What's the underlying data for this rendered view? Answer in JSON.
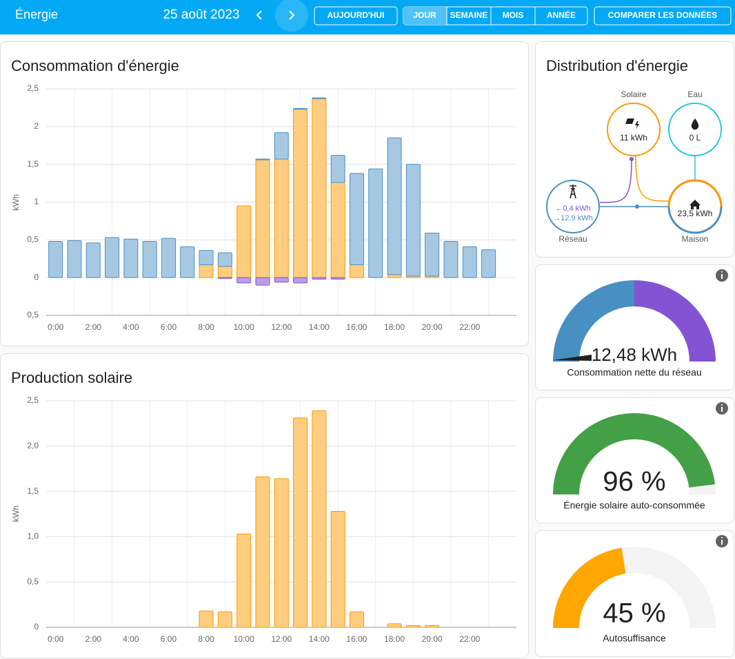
{
  "header": {
    "title": "Énergie",
    "date": "25 août 2023",
    "buttons": [
      "AUJOURD'HUI",
      "JOUR",
      "SEMAINE",
      "MOIS",
      "ANNÉE",
      "COMPARER LES DONNÉES"
    ]
  },
  "chart_data": [
    {
      "type": "bar",
      "stacked": true,
      "title": "Consommation d'énergie",
      "y_label": "kWh",
      "categories": [
        "0:00",
        null,
        "2:00",
        null,
        "4:00",
        null,
        "6:00",
        null,
        "8:00",
        null,
        "10:00",
        null,
        "12:00",
        null,
        "14:00",
        null,
        "16:00",
        null,
        "18:00",
        null,
        "20:00",
        null,
        "22:00",
        null
      ],
      "series": [
        {
          "color": "#ff9800",
          "fill": "#ffcd80",
          "values": [
            0,
            0,
            0,
            0,
            0,
            0,
            0,
            0,
            0.17,
            0.15,
            0.95,
            1.56,
            1.57,
            2.23,
            2.37,
            1.26,
            0.17,
            0,
            0.04,
            0.02,
            0.02,
            0,
            0,
            0
          ]
        },
        {
          "color": "#488fc2",
          "fill": "#a7c8e3",
          "values": [
            0.48,
            0.49,
            0.46,
            0.53,
            0.51,
            0.48,
            0.52,
            0.41,
            0.19,
            0.18,
            0,
            0.01,
            0.35,
            0.01,
            0.01,
            0.36,
            1.21,
            1.44,
            1.81,
            1.48,
            0.57,
            0.48,
            0.41,
            0.37
          ]
        },
        {
          "color": "#8353d4",
          "fill": "#b99ee6",
          "values": [
            0,
            0,
            0,
            0,
            0,
            0,
            0,
            0,
            0,
            -0.01,
            -0.07,
            -0.1,
            -0.06,
            -0.07,
            -0.02,
            -0.02,
            0,
            0,
            0,
            0,
            0,
            0,
            0,
            0
          ]
        }
      ],
      "ylim": [
        -0.5,
        2.5
      ],
      "yticks": [
        {
          "value": 2.5,
          "label": "2,5"
        },
        2,
        {
          "value": 1.5,
          "label": "1,5"
        },
        1,
        {
          "value": 0.5,
          "label": "0,5"
        },
        0,
        {
          "value": -0.5,
          "label": "0,5"
        }
      ],
      "grid": true
    },
    {
      "type": "bar",
      "stacked": false,
      "title": "Production solaire",
      "y_label": "kWh",
      "categories": [
        "0:00",
        null,
        "2:00",
        null,
        "4:00",
        null,
        "6:00",
        null,
        "8:00",
        null,
        "10:00",
        null,
        "12:00",
        null,
        "14:00",
        null,
        "16:00",
        null,
        "18:00",
        null,
        "20:00",
        null,
        "22:00",
        null
      ],
      "series": [
        {
          "color": "#ff9800",
          "fill": "#ffcd80",
          "values": [
            0,
            0,
            0,
            0,
            0,
            0,
            0,
            0,
            0.18,
            0.17,
            1.03,
            1.66,
            1.64,
            2.31,
            2.39,
            1.28,
            0.17,
            0,
            0.04,
            0.02,
            0.02,
            0,
            0,
            0
          ]
        }
      ],
      "ylim": [
        0,
        2.5
      ],
      "yticks": [
        {
          "value": 2.5,
          "label": "2,5"
        },
        {
          "value": 2,
          "label": "2,0"
        },
        {
          "value": 1.5,
          "label": "1,5"
        },
        {
          "value": 1,
          "label": "1,0"
        },
        {
          "value": 0.5,
          "label": "0,5"
        },
        0
      ],
      "grid": true
    }
  ],
  "distribution": {
    "title": "Distribution d'énergie",
    "solar": {
      "label": "Solaire",
      "value": "11 kWh"
    },
    "water": {
      "label": "Eau",
      "value": "0 L"
    },
    "grid": {
      "label": "Réseau",
      "from": "←0,4 kWh",
      "to": "→12,9 kWh"
    },
    "home": {
      "label": "Maison",
      "value": "23,5 kWh"
    }
  },
  "gauges": [
    {
      "value_label": "12,48 kWh",
      "label": "Consommation nette du réseau"
    },
    {
      "value": 96,
      "range": [
        0,
        100
      ],
      "value_label": "96 %",
      "label": "Énergie solaire auto-consommée",
      "color": "#43a047"
    },
    {
      "value": 45,
      "range": [
        0,
        100
      ],
      "value_label": "45 %",
      "label": "Autosuffisance",
      "color": "#ffa600"
    }
  ]
}
